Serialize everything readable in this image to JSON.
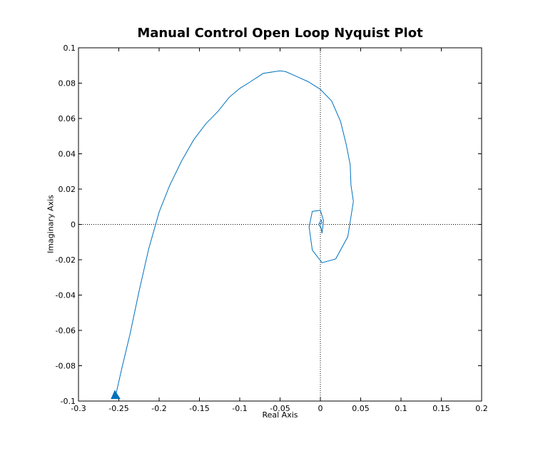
{
  "chart_data": {
    "type": "line",
    "title": "Manual Control Open Loop Nyquist Plot",
    "xlabel": "Real Axis",
    "ylabel": "Imaginary Axis",
    "xlim": [
      -0.3,
      0.2
    ],
    "ylim": [
      -0.1,
      0.1
    ],
    "xticks": [
      -0.3,
      -0.25,
      -0.2,
      -0.15,
      -0.1,
      -0.05,
      0,
      0.05,
      0.1,
      0.15,
      0.2
    ],
    "xtick_labels": [
      "-0.3",
      "-0.25",
      "-0.2",
      "-0.15",
      "-0.1",
      "-0.05",
      "0",
      "0.05",
      "0.1",
      "0.15",
      "0.2"
    ],
    "yticks": [
      -0.1,
      -0.08,
      -0.06,
      -0.04,
      -0.02,
      0,
      0.02,
      0.04,
      0.06,
      0.08,
      0.1
    ],
    "ytick_labels": [
      "-0.1",
      "-0.08",
      "-0.06",
      "-0.04",
      "-0.02",
      "0",
      "0.02",
      "0.04",
      "0.06",
      "0.08",
      "0.1"
    ],
    "grid": false,
    "reference_lines": [
      "x = 0 (dotted)",
      "y = 0 (dotted)"
    ],
    "line_color": "#0072BD",
    "series": [
      {
        "x": [
          -0.254,
          -0.246,
          -0.236,
          -0.225,
          -0.213,
          -0.2,
          -0.187,
          -0.172,
          -0.157,
          -0.142,
          -0.127,
          -0.113,
          -0.1,
          -0.086,
          -0.071,
          -0.057,
          -0.05,
          -0.043,
          -0.029,
          -0.015,
          0,
          0.014,
          0.025,
          0.032,
          0.037,
          0.038,
          0.041,
          0.034,
          0.019,
          0.002,
          -0.01,
          -0.014,
          -0.01,
          -0.007,
          0,
          0.004,
          0.002,
          0.001,
          -0.002,
          0.001,
          0.002,
          0
        ],
        "y": [
          -0.097,
          -0.081,
          -0.062,
          -0.038,
          -0.014,
          0.007,
          0.022,
          0.036,
          0.048,
          0.057,
          0.064,
          0.072,
          0.077,
          0.081,
          0.0855,
          0.0865,
          0.087,
          0.0865,
          0.0837,
          0.0808,
          0.0765,
          0.0699,
          0.0583,
          0.0453,
          0.0338,
          0.0222,
          0.013,
          -0.007,
          -0.0195,
          -0.0217,
          -0.0145,
          -0.0015,
          0.0074,
          0.0076,
          0.008,
          0.002,
          -0.005,
          -0.002,
          0.0,
          0.0025,
          0.001,
          0.0
        ]
      }
    ],
    "start_marker": "filled triangle"
  }
}
